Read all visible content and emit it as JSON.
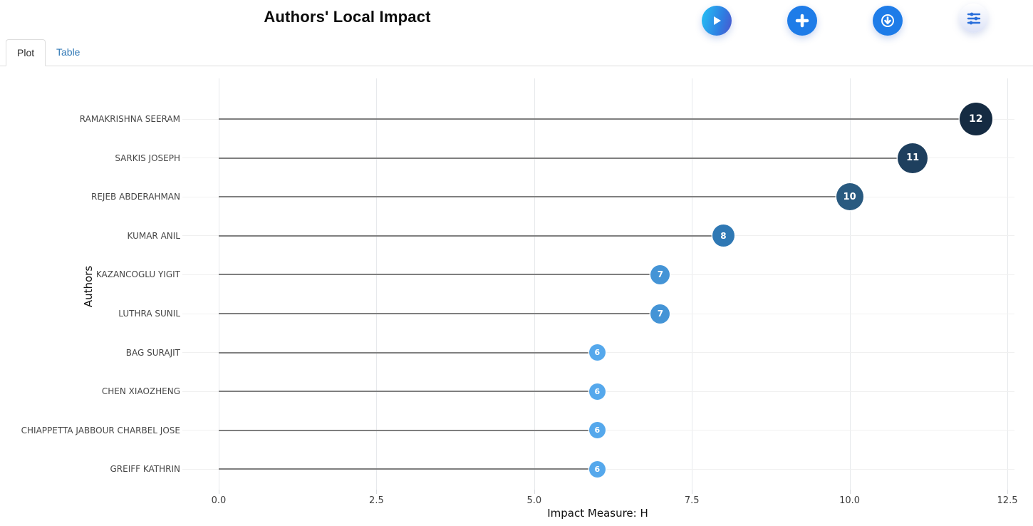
{
  "header": {
    "title": "Authors' Local Impact",
    "buttons": {
      "play": "run analysis",
      "add": "add",
      "download": "download",
      "filters": "filters"
    }
  },
  "tabs": {
    "plot": "Plot",
    "table": "Table"
  },
  "colors": {
    "accent_blue": "#1e7ce8",
    "tab_link_blue": "#337ab7",
    "stem_gray": "#7f7f7f"
  },
  "chart_data": {
    "type": "lollipop",
    "orientation": "horizontal",
    "title": "Authors' Local Impact",
    "xlabel": "Impact Measure: H",
    "ylabel": "Authors",
    "xlim": [
      0,
      12.5
    ],
    "xticks": [
      0.0,
      2.5,
      5.0,
      7.5,
      10.0,
      12.5
    ],
    "xtick_labels": [
      "0.0",
      "2.5",
      "5.0",
      "7.5",
      "10.0",
      "12.5"
    ],
    "grid": true,
    "legend": "none",
    "categories": [
      "RAMAKRISHNA SEERAM",
      "SARKIS JOSEPH",
      "REJEB ABDERAHMAN",
      "KUMAR ANIL",
      "KAZANCOGLU YIGIT",
      "LUTHRA SUNIL",
      "BAG SURAJIT",
      "CHEN XIAOZHENG",
      "CHIAPPETTA JABBOUR CHARBEL JOSE",
      "GREIFF KATHRIN"
    ],
    "values": [
      12,
      11,
      10,
      8,
      7,
      7,
      6,
      6,
      6,
      6
    ],
    "point_colors": [
      "#152b42",
      "#1e3f5e",
      "#295a80",
      "#2f78b4",
      "#4494d6",
      "#4494d6",
      "#55a8ec",
      "#55a8ec",
      "#55a8ec",
      "#55a8ec"
    ],
    "stem_color": "#7f7f7f"
  }
}
